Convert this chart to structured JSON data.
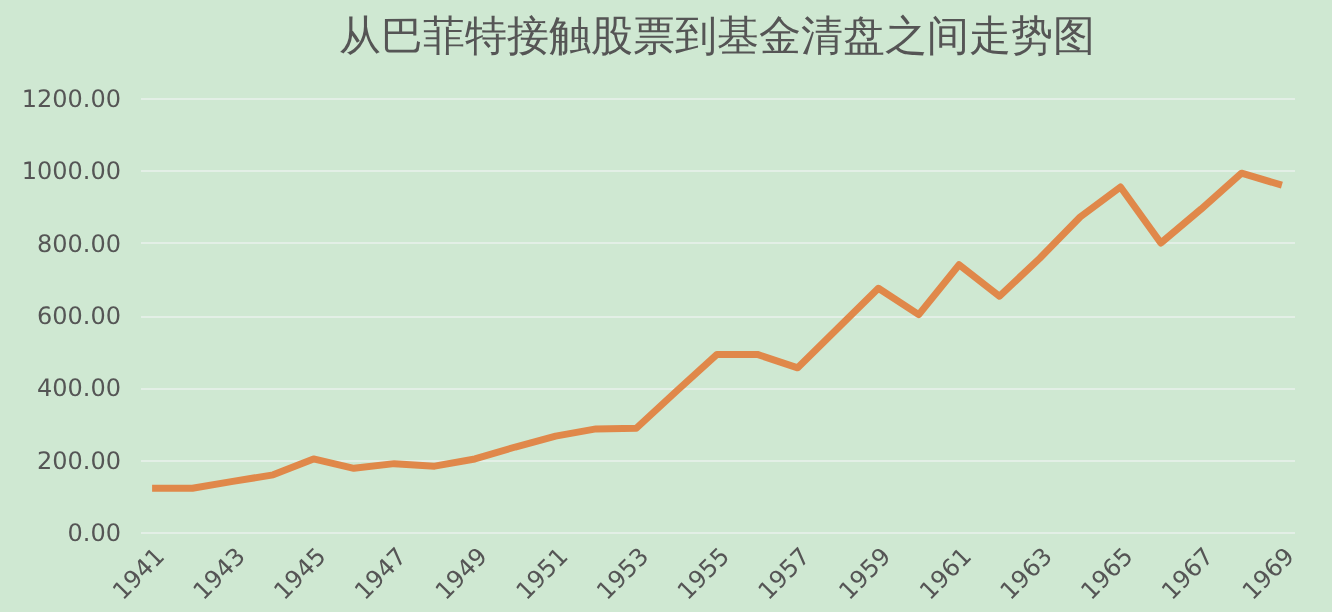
{
  "chart_data": {
    "type": "line",
    "title": "从巴菲特接触股票到基金清盘之间走势图",
    "categories": [
      "1941",
      null,
      "1943",
      null,
      "1945",
      null,
      "1947",
      null,
      "1949",
      null,
      "1951",
      null,
      "1953",
      null,
      "1955",
      null,
      "1957",
      null,
      "1959",
      null,
      "1961",
      null,
      "1963",
      null,
      "1965",
      null,
      "1967",
      null,
      "1969"
    ],
    "series": [
      {
        "color": "#e0884a",
        "values": [
          121,
          121,
          140,
          158,
          202,
          176,
          189,
          182,
          202,
          235,
          265,
          285,
          287,
          390,
          491,
          491,
          454,
          564,
          674,
          601,
          739,
          652,
          757,
          871,
          954,
          799,
          893,
          992,
          959
        ]
      }
    ],
    "ylim": [
      0,
      1200
    ],
    "yticks": [
      {
        "value": 0,
        "label": "0.00"
      },
      {
        "value": 200,
        "label": "200.00"
      },
      {
        "value": 400,
        "label": "400.00"
      },
      {
        "value": 600,
        "label": "600.00"
      },
      {
        "value": 800,
        "label": "800.00"
      },
      {
        "value": 1000,
        "label": "1000.00"
      },
      {
        "value": 1200,
        "label": "1200.00"
      }
    ],
    "grid": "y"
  }
}
